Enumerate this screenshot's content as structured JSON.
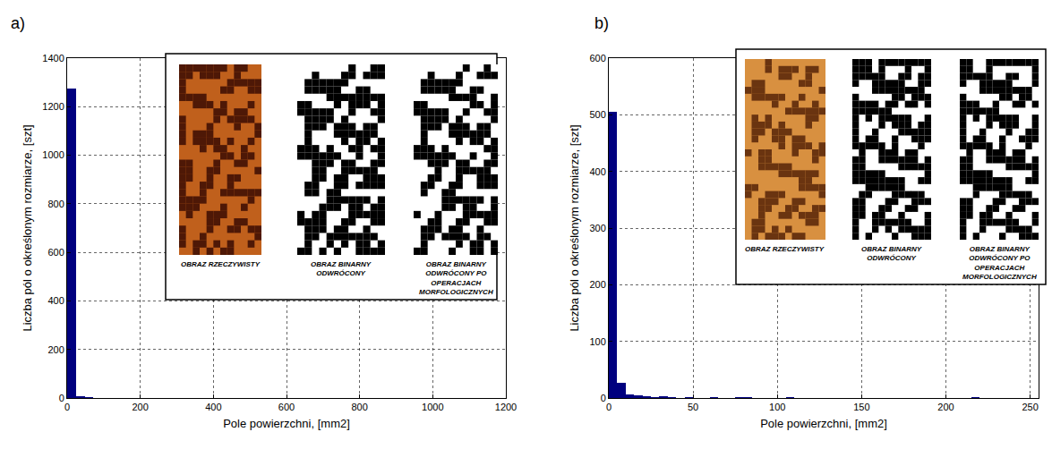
{
  "chart_data": [
    {
      "type": "histogram",
      "title": "a)",
      "x_label": "Pole powierzchni, [mm2]",
      "y_label": "Liczba pól o określonym rozmiarze, [szt]",
      "bins": [
        0,
        24,
        48,
        72,
        96,
        120,
        144,
        168,
        192,
        216,
        240,
        264,
        288,
        312,
        336,
        360,
        384,
        408,
        432,
        456,
        480,
        504,
        528,
        552,
        576,
        600,
        624,
        648,
        672,
        696,
        720,
        744,
        768,
        792,
        816,
        840,
        864,
        888,
        912,
        936,
        960,
        984,
        1008,
        1032,
        1056,
        1080,
        1104,
        1128,
        1152,
        1176,
        1200
      ],
      "counts": [
        1275,
        6,
        2,
        1,
        0,
        1,
        0,
        0,
        0,
        0,
        0,
        0,
        0,
        0,
        0,
        0,
        0,
        0,
        0,
        0,
        0,
        0,
        0,
        0,
        0,
        0,
        0,
        0,
        0,
        0,
        0,
        0,
        0,
        0,
        0,
        0,
        0,
        0,
        0,
        0,
        0,
        0,
        0,
        0,
        0,
        0,
        0,
        0,
        1,
        0
      ],
      "color": "#00007f",
      "xlim": [
        0,
        1200
      ],
      "xticks": [
        0,
        200,
        400,
        600,
        800,
        1000,
        1200
      ],
      "ylim": [
        0,
        1400
      ],
      "yticks": [
        0,
        200,
        400,
        600,
        800,
        1000,
        1200,
        1400
      ],
      "grid": true,
      "annotations": [
        "OBRAZ RZECZYWISTY",
        "OBRAZ BINARNY ODWRÓCONY",
        "OBRAZ BINARNY ODWRÓCONY PO OPERACJACH MORFOLOGICZNYCH"
      ]
    },
    {
      "type": "histogram",
      "title": "b)",
      "x_label": "Pole powierzchni, [mm2]",
      "y_label": "Liczba pól o określonym rozmiarze, [szt]",
      "bins": [
        0,
        5,
        10,
        15,
        20,
        25,
        30,
        35,
        40,
        45,
        50,
        55,
        60,
        65,
        70,
        75,
        80,
        85,
        90,
        95,
        100,
        105,
        110,
        115,
        120,
        125,
        130,
        135,
        140,
        145,
        150,
        155,
        160,
        165,
        170,
        175,
        180,
        185,
        190,
        195,
        200,
        205,
        210,
        215,
        220,
        225,
        230,
        235,
        240,
        245,
        250
      ],
      "counts": [
        505,
        27,
        7,
        5,
        3,
        1,
        3,
        1,
        0,
        2,
        0,
        0,
        2,
        0,
        0,
        2,
        1,
        0,
        0,
        0,
        0,
        1,
        0,
        0,
        0,
        0,
        0,
        0,
        0,
        0,
        0,
        0,
        0,
        0,
        0,
        0,
        0,
        0,
        0,
        0,
        0,
        0,
        0,
        1,
        0,
        0,
        0,
        0,
        0,
        0
      ],
      "color": "#00007f",
      "xlim": [
        0,
        255
      ],
      "xticks": [
        0,
        50,
        100,
        150,
        200,
        250
      ],
      "ylim": [
        0,
        600
      ],
      "yticks": [
        0,
        100,
        200,
        300,
        400,
        500,
        600
      ],
      "grid": true,
      "annotations": [
        "OBRAZ RZECZYWISTY",
        "OBRAZ BINARNY ODWRÓCONY",
        "OBRAZ BINARNY ODWRÓCONY PO OPERACJACH MORFOLOGICZNYCH"
      ]
    }
  ]
}
